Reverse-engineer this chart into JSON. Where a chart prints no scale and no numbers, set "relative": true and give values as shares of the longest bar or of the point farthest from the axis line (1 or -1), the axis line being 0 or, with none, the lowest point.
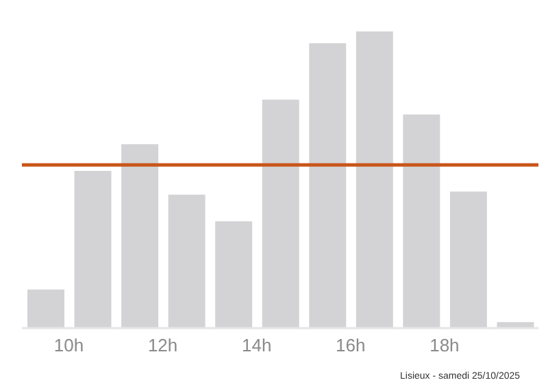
{
  "chart_data": {
    "type": "bar",
    "relative": true,
    "x": [
      9.5,
      10.5,
      11.5,
      12.5,
      13.5,
      14.5,
      15.5,
      16.5,
      17.5,
      18.5,
      19.5
    ],
    "values": [
      0.13,
      0.53,
      0.62,
      0.45,
      0.36,
      0.77,
      0.96,
      1,
      0.72,
      0.46,
      0.02
    ],
    "color": "#d3d3d5",
    "xlim": [
      9,
      20
    ],
    "xticks": [
      {
        "value": 10,
        "label": "10h"
      },
      {
        "value": 12,
        "label": "12h"
      },
      {
        "value": 14,
        "label": "14h"
      },
      {
        "value": 16,
        "label": "16h"
      },
      {
        "value": 18,
        "label": "18h"
      }
    ],
    "tick_labels": "x",
    "grid": false,
    "ref_lines": [
      {
        "axis": "y",
        "value": 0.55,
        "color": "#c8561a"
      }
    ],
    "annotations": [
      "Lisieux - samedi 25/10/2025"
    ]
  }
}
